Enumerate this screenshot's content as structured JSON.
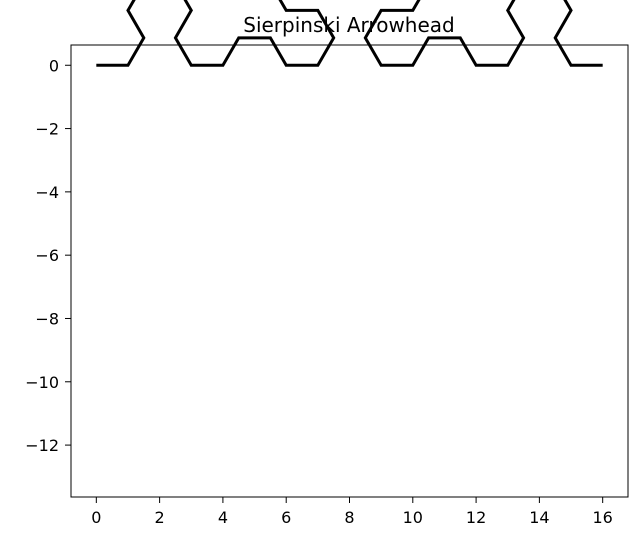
{
  "chart_data": {
    "type": "line",
    "title": "Sierpinski Arrowhead",
    "xlabel": "",
    "ylabel": "",
    "xlim": [
      -0.8,
      16.8
    ],
    "ylim": [
      -13.64,
      0.64
    ],
    "xticks": [
      0,
      2,
      4,
      6,
      8,
      10,
      12,
      14,
      16
    ],
    "xtick_labels": [
      "0",
      "2",
      "4",
      "6",
      "8",
      "10",
      "12",
      "14",
      "16"
    ],
    "yticks": [
      0,
      -2,
      -4,
      -6,
      -8,
      -10,
      -12
    ],
    "ytick_labels": [
      "0",
      "−2",
      "−4",
      "−6",
      "−8",
      "−10",
      "−12"
    ],
    "grid": false,
    "legend": false,
    "line_color": "#000000",
    "curve": {
      "generator": "sierpinski-arrowhead",
      "order": 4,
      "start": [
        0,
        0
      ],
      "segment_length": 1,
      "initial_heading_deg": 0,
      "turn_deg": 60
    }
  }
}
